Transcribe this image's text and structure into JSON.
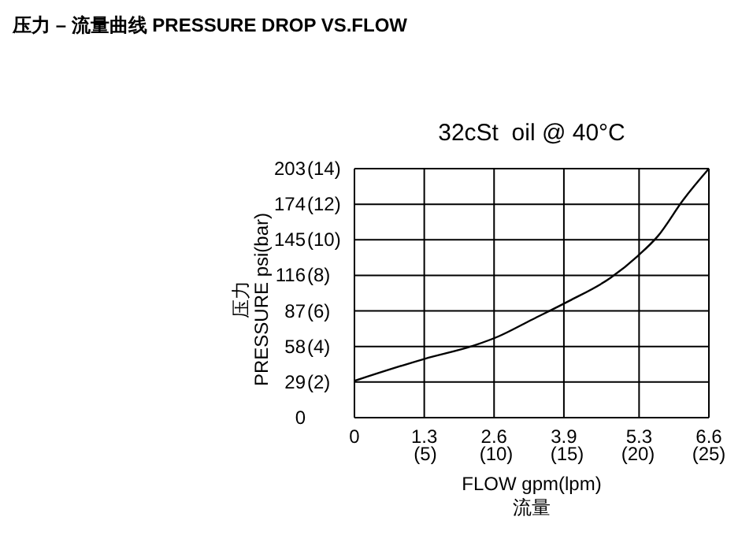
{
  "chart_data": {
    "type": "line",
    "title": "压力 – 流量曲线 PRESSURE DROP VS.FLOW",
    "subtitle": "32cSt  oil @ 40°C",
    "xlabel": "FLOW gpm(lpm)\n流量",
    "ylabel": "压力\nPRESSURE psi(bar)",
    "x": [
      0,
      1.31,
      2.24,
      2.67,
      3.31,
      3.99,
      4.77,
      5.28,
      5.65,
      6.13,
      6.6
    ],
    "series": [
      {
        "color": "#000000",
        "values": [
          30,
          48,
          59,
          66,
          80,
          95,
          114,
          132,
          148,
          178,
          203
        ]
      }
    ],
    "xlim": [
      0,
      6.6
    ],
    "xticks": [
      0,
      1.3,
      2.6,
      3.9,
      5.3,
      6.6
    ],
    "x2lim": [
      0,
      25
    ],
    "x2ticks": [
      {
        "value": 5,
        "label": "(5)"
      },
      {
        "value": 10,
        "label": "(10)"
      },
      {
        "value": 15,
        "label": "(15)"
      },
      {
        "value": 20,
        "label": "(20)"
      },
      {
        "value": 25,
        "label": "(25)"
      }
    ],
    "ylim": [
      0,
      203
    ],
    "yticks": [
      0,
      29,
      58,
      87,
      116,
      145,
      174,
      203
    ],
    "y2lim": [
      0,
      14
    ],
    "y2ticks": [
      {
        "value": 2,
        "label": "(2)"
      },
      {
        "value": 4,
        "label": "(4)"
      },
      {
        "value": 6,
        "label": "(6)"
      },
      {
        "value": 8,
        "label": "(8)"
      },
      {
        "value": 10,
        "label": "(10)"
      },
      {
        "value": 12,
        "label": "(12)"
      },
      {
        "value": 14,
        "label": "(14)"
      }
    ],
    "grid": true,
    "legend": false,
    "marker": "none",
    "line_style": "solid"
  }
}
